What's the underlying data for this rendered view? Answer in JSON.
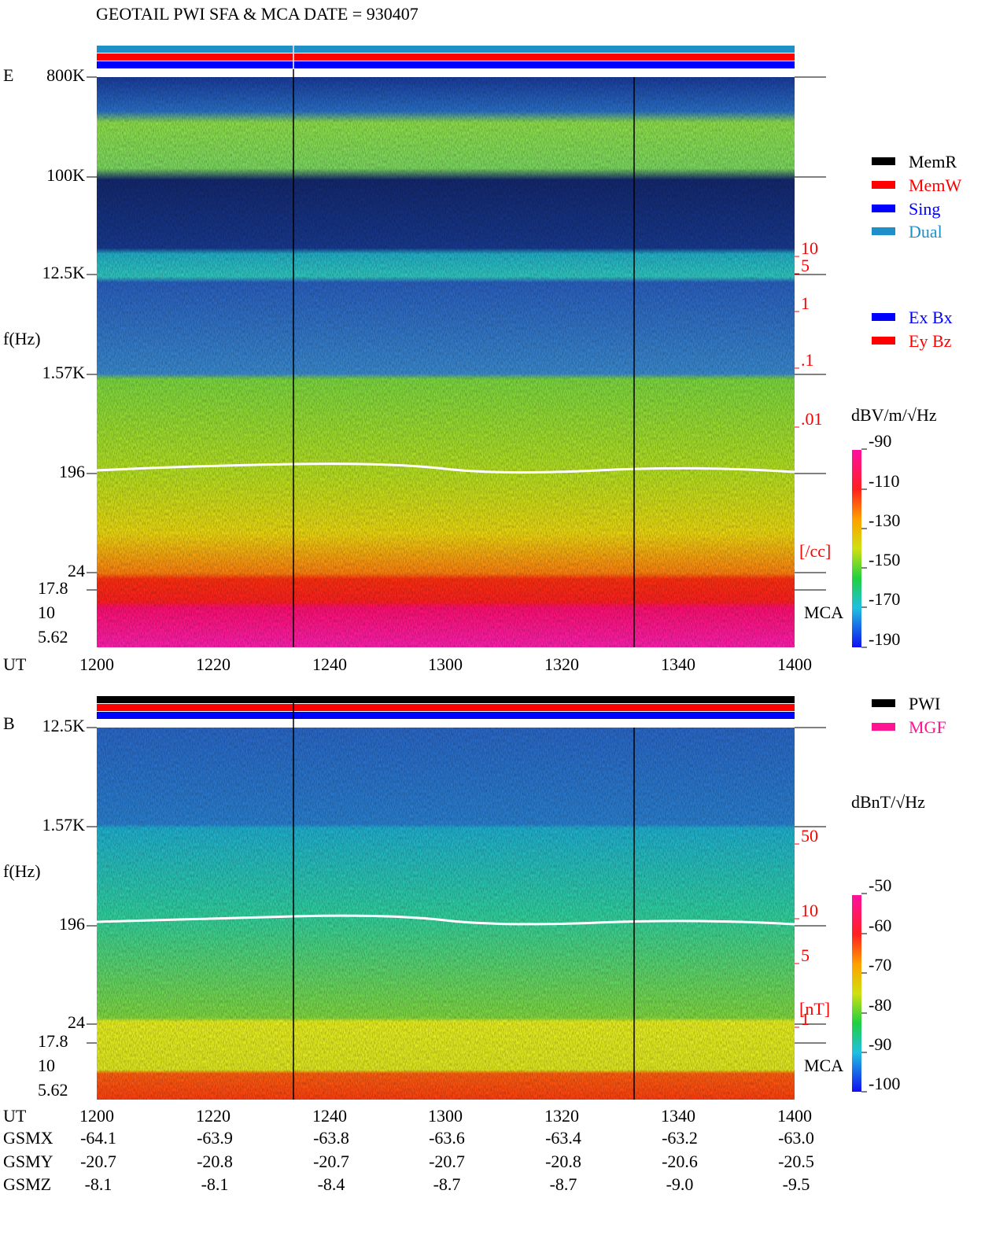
{
  "title": "GEOTAIL  PWI SFA & MCA   DATE = 930407",
  "panels": [
    {
      "label": "E",
      "y_axis_label": "f(Hz)",
      "freq_ticks": [
        "800K",
        "100K",
        "12.5K",
        "1.57K",
        "196",
        "24",
        "17.8",
        "10",
        "5.62"
      ],
      "x_axis_label": "UT",
      "time_ticks": [
        "1200",
        "1220",
        "1240",
        "1300",
        "1320",
        "1340",
        "1400"
      ],
      "mca_label": "MCA",
      "right_ticks": [
        "10",
        "5",
        "1",
        ".1",
        ".01"
      ],
      "right_unit": "[/cc]",
      "legend": [
        {
          "name": "MemR",
          "color": "#000000"
        },
        {
          "name": "MemW",
          "color": "#ff0000"
        },
        {
          "name": "Sing",
          "color": "#0000ff"
        },
        {
          "name": "Dual",
          "color": "#1e8fc8"
        }
      ],
      "legend2": [
        {
          "name": "Ex Bx",
          "color": "#0000ff"
        },
        {
          "name": "Ey Bz",
          "color": "#ff0000"
        }
      ],
      "colorbar_unit": "dBV/m/√Hz",
      "colorbar_ticks": [
        "-90",
        "-110",
        "-130",
        "-150",
        "-170",
        "-190"
      ]
    },
    {
      "label": "B",
      "y_axis_label": "f(Hz)",
      "freq_ticks": [
        "12.5K",
        "1.57K",
        "196",
        "24",
        "17.8",
        "10",
        "5.62"
      ],
      "x_axis_label": "UT",
      "time_ticks": [
        "1200",
        "1220",
        "1240",
        "1300",
        "1320",
        "1340",
        "1400"
      ],
      "mca_label": "MCA",
      "right_ticks": [
        "50",
        "10",
        "5",
        "1"
      ],
      "right_unit": "[nT]",
      "legend": [
        {
          "name": "PWI",
          "color": "#000000"
        },
        {
          "name": "MGF",
          "color": "#ff1493"
        }
      ],
      "colorbar_unit": "dBnT/√Hz",
      "colorbar_ticks": [
        "-50",
        "-60",
        "-70",
        "-80",
        "-90",
        "-100"
      ]
    }
  ],
  "orbit": [
    {
      "label": "GSMX",
      "values": [
        "-64.1",
        "-63.9",
        "-63.8",
        "-63.6",
        "-63.4",
        "-63.2",
        "-63.0"
      ]
    },
    {
      "label": "GSMY",
      "values": [
        "-20.7",
        "-20.8",
        "-20.7",
        "-20.7",
        "-20.8",
        "-20.6",
        "-20.5"
      ]
    },
    {
      "label": "GSMZ",
      "values": [
        "-8.1",
        "-8.1",
        "-8.4",
        "-8.7",
        "-8.7",
        "-9.0",
        "-9.5"
      ]
    }
  ]
}
